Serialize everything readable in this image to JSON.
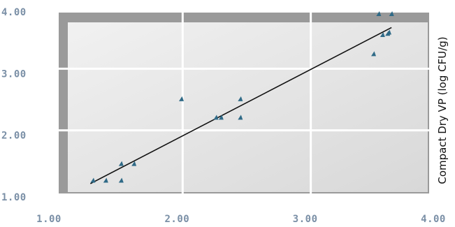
{
  "colors": {
    "tick_text": "#7a8fa6",
    "marker": "#2f6a87",
    "fit_line": "#111111",
    "plot_frame": "#9a9a9a",
    "plot_fill_light": "#f1f1f1",
    "plot_fill_dark": "#d8d8d8",
    "gridline": "#ffffff"
  },
  "chart_data": {
    "type": "scatter",
    "title": "",
    "xlabel": "",
    "ylabel": "Compact Dry VP (log CFU/g)",
    "xlim": [
      1.0,
      4.0
    ],
    "ylim": [
      1.0,
      4.0
    ],
    "x_ticks": [
      1.0,
      2.0,
      3.0,
      4.0
    ],
    "y_ticks": [
      1.0,
      2.0,
      3.0,
      4.0
    ],
    "x_tick_labels": [
      "1.00",
      "2.00",
      "3.00",
      "4.00"
    ],
    "y_tick_labels": [
      "1.00",
      "2.00",
      "3.00",
      "4.00"
    ],
    "grid": true,
    "series": [
      {
        "points": [
          {
            "x": 1.3,
            "y": 1.3
          },
          {
            "x": 1.4,
            "y": 1.3
          },
          {
            "x": 1.52,
            "y": 1.3
          },
          {
            "x": 1.52,
            "y": 1.57
          },
          {
            "x": 1.62,
            "y": 1.57
          },
          {
            "x": 1.99,
            "y": 2.62
          },
          {
            "x": 2.26,
            "y": 2.32
          },
          {
            "x": 2.3,
            "y": 2.32
          },
          {
            "x": 2.45,
            "y": 2.32
          },
          {
            "x": 2.45,
            "y": 2.62
          },
          {
            "x": 3.49,
            "y": 3.35
          },
          {
            "x": 3.53,
            "y": 4.0
          },
          {
            "x": 3.56,
            "y": 3.66
          },
          {
            "x": 3.6,
            "y": 3.68
          },
          {
            "x": 3.61,
            "y": 3.7
          },
          {
            "x": 3.63,
            "y": 4.0
          }
        ]
      }
    ],
    "fit_line": {
      "x": [
        1.28,
        3.63
      ],
      "y": [
        1.25,
        3.78
      ]
    }
  }
}
